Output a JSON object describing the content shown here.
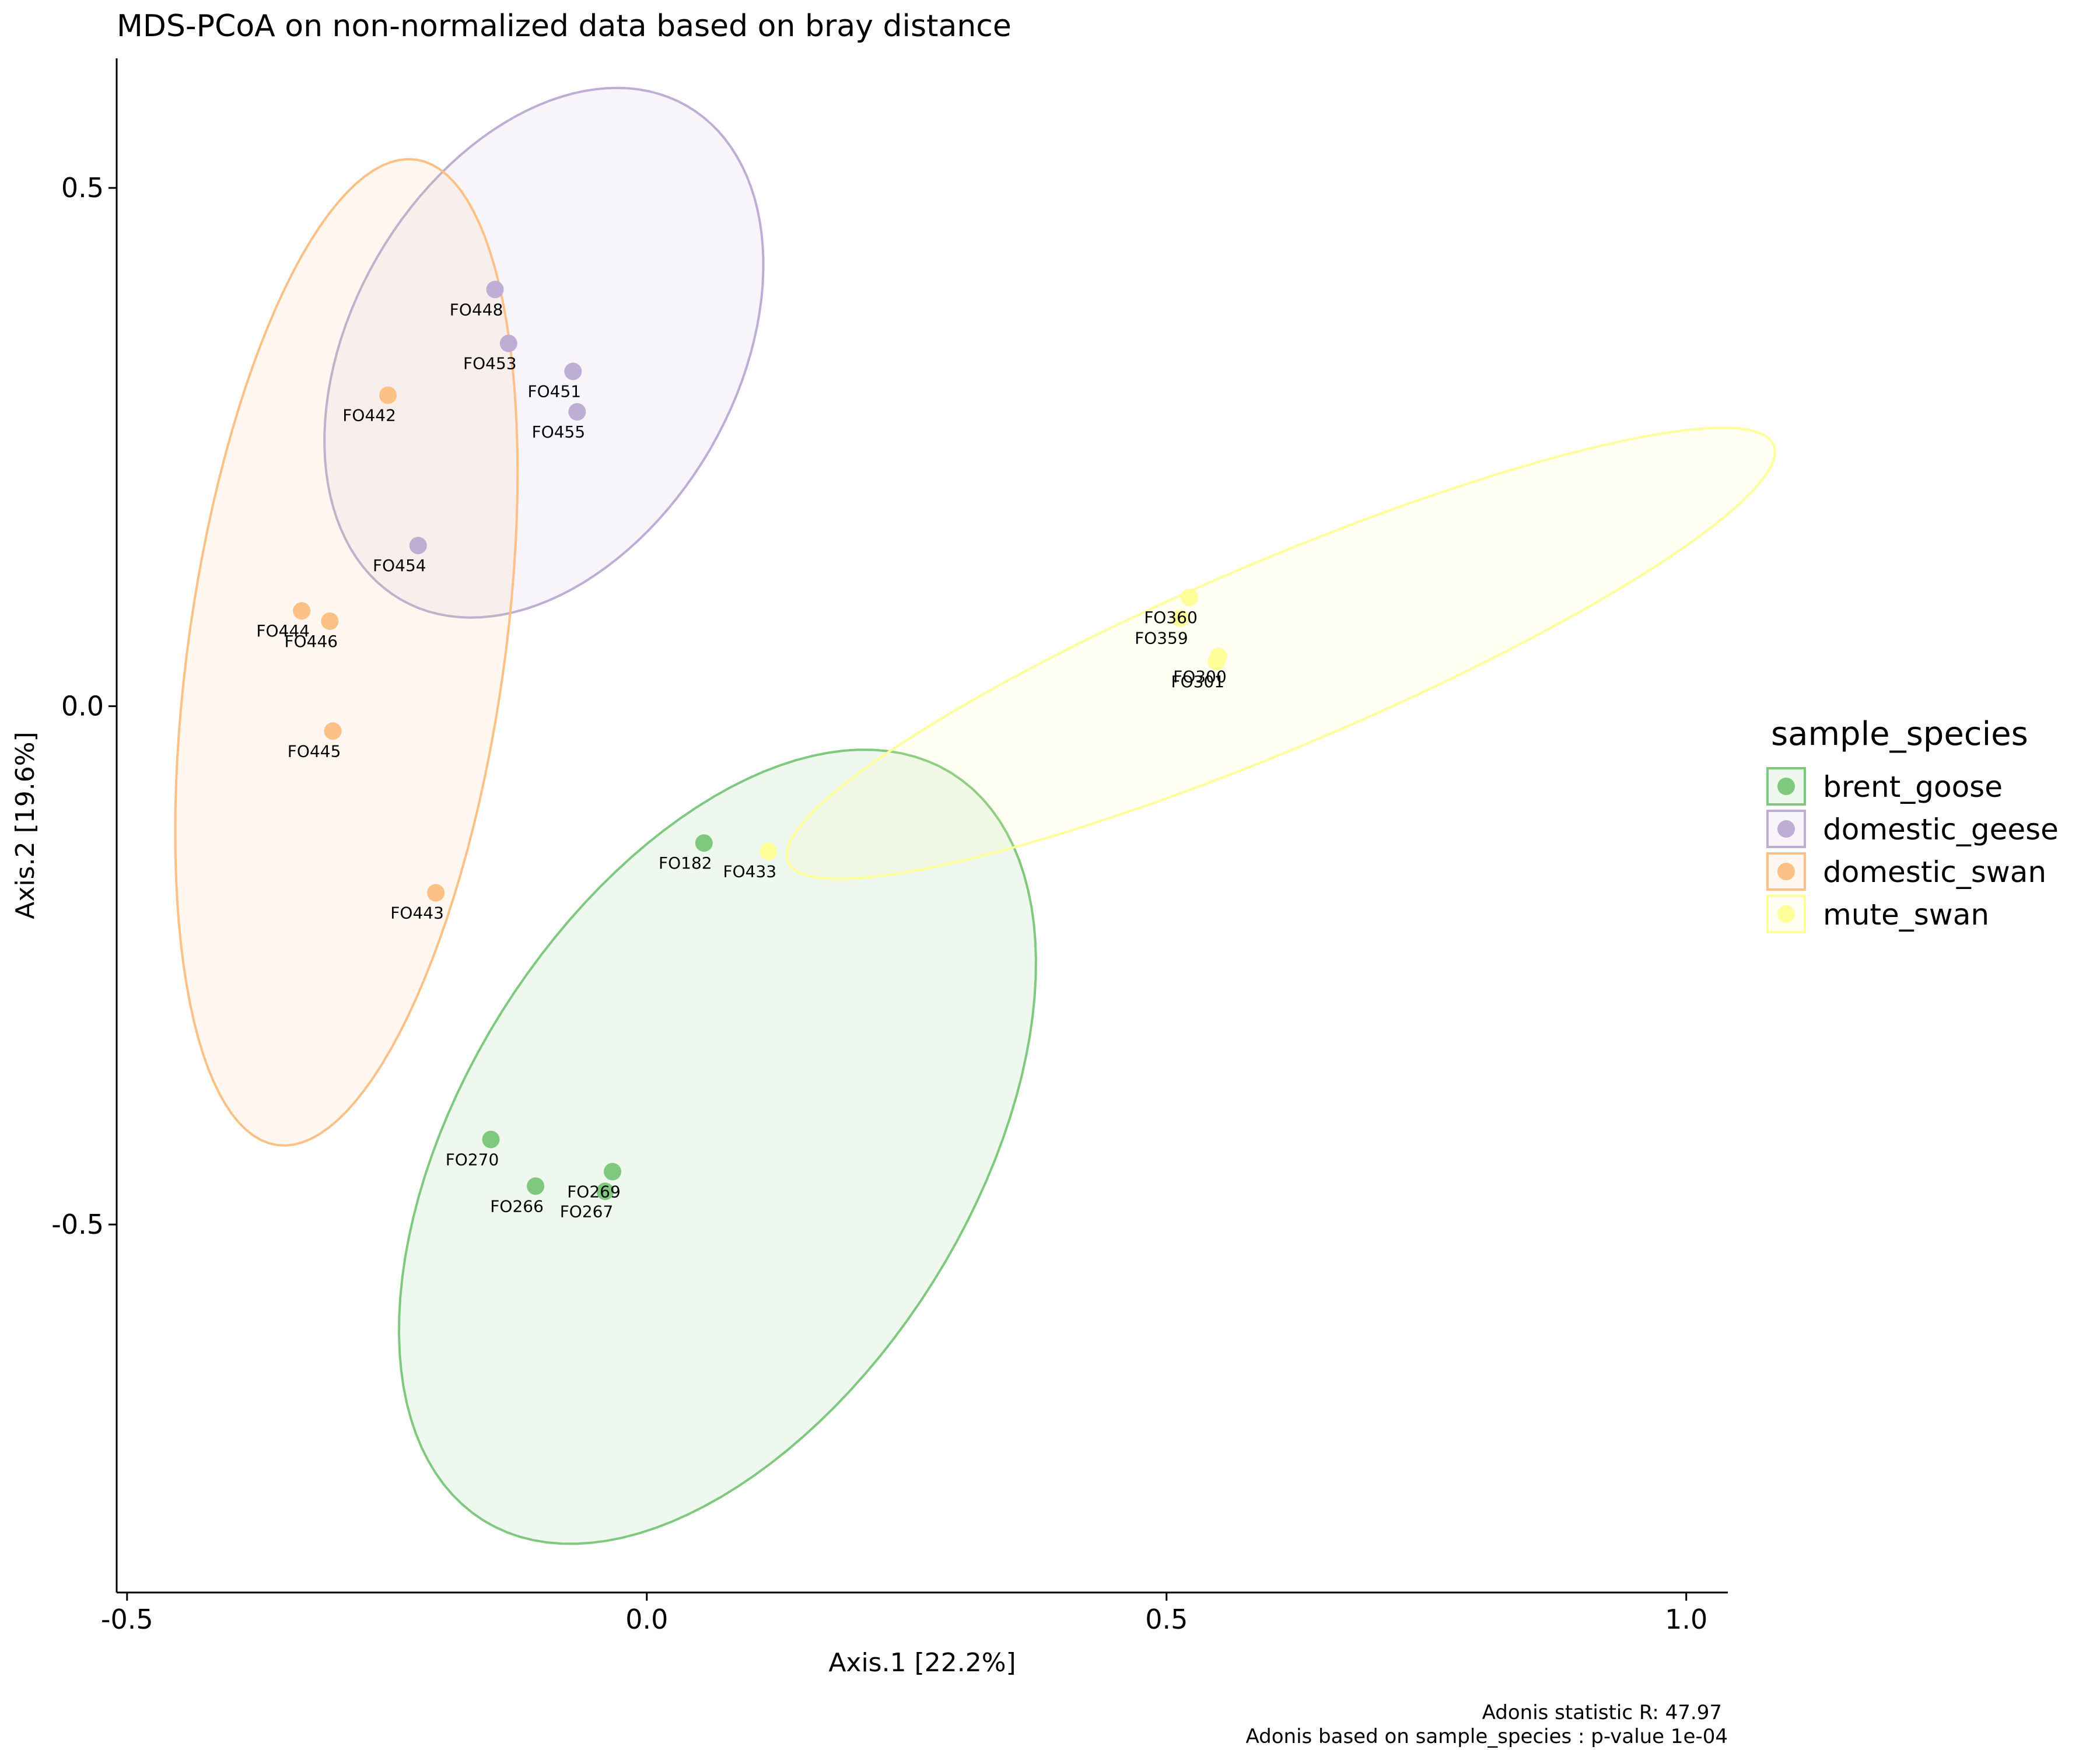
{
  "chart_data": {
    "type": "scatter",
    "title": "MDS-PCoA on non-normalized data based on bray distance",
    "xlabel": "Axis.1   [22.2%]",
    "ylabel": "Axis.2   [19.6%]",
    "xlim": [
      -0.51,
      1.04
    ],
    "ylim": [
      -0.855,
      0.625
    ],
    "xticks": [
      -0.5,
      0.0,
      0.5,
      1.0
    ],
    "xtick_labels": [
      "-0.5",
      "0.0",
      "0.5",
      "1.0"
    ],
    "yticks": [
      -0.5,
      0.0,
      0.5
    ],
    "ytick_labels": [
      "-0.5",
      "0.0",
      "0.5"
    ],
    "grid": false,
    "legend": {
      "title": "sample_species",
      "position": "right"
    },
    "caption": [
      "Adonis statistic R: 47.97",
      "Adonis based on  sample_species : p-value 1e-04"
    ],
    "series": [
      {
        "name": "brent_goose",
        "color": "#7fc97f",
        "points": [
          {
            "label": "FO182",
            "x": 0.055,
            "y": -0.132
          },
          {
            "label": "FO270",
            "x": -0.15,
            "y": -0.418
          },
          {
            "label": "FO266",
            "x": -0.107,
            "y": -0.463
          },
          {
            "label": "FO269",
            "x": -0.033,
            "y": -0.449
          },
          {
            "label": "FO267",
            "x": -0.04,
            "y": -0.468
          }
        ],
        "ellipse": {
          "cx": 0.068,
          "cy": -0.425,
          "rx": 0.425,
          "ry": 0.245,
          "angle": 58
        }
      },
      {
        "name": "domestic_geese",
        "color": "#beaed4",
        "points": [
          {
            "label": "FO448",
            "x": -0.146,
            "y": 0.402
          },
          {
            "label": "FO453",
            "x": -0.133,
            "y": 0.35
          },
          {
            "label": "FO451",
            "x": -0.071,
            "y": 0.323
          },
          {
            "label": "FO455",
            "x": -0.067,
            "y": 0.284
          },
          {
            "label": "FO454",
            "x": -0.22,
            "y": 0.155
          }
        ],
        "ellipse": {
          "cx": -0.099,
          "cy": 0.341,
          "rx": 0.275,
          "ry": 0.185,
          "angle": 60
        }
      },
      {
        "name": "domestic_swan",
        "color": "#fdc086",
        "points": [
          {
            "label": "FO442",
            "x": -0.249,
            "y": 0.3
          },
          {
            "label": "FO444",
            "x": -0.332,
            "y": 0.092
          },
          {
            "label": "FO446",
            "x": -0.305,
            "y": 0.082
          },
          {
            "label": "FO445",
            "x": -0.302,
            "y": -0.024
          },
          {
            "label": "FO443",
            "x": -0.203,
            "y": -0.18
          }
        ],
        "ellipse": {
          "cx": -0.289,
          "cy": 0.052,
          "rx": 0.48,
          "ry": 0.152,
          "angle": 82
        }
      },
      {
        "name": "mute_swan",
        "color": "#ffff99",
        "points": [
          {
            "label": "FO433",
            "x": 0.117,
            "y": -0.14
          },
          {
            "label": "FO360",
            "x": 0.522,
            "y": 0.105
          },
          {
            "label": "FO359",
            "x": 0.513,
            "y": 0.085
          },
          {
            "label": "FO300",
            "x": 0.55,
            "y": 0.048
          },
          {
            "label": "FO301",
            "x": 0.548,
            "y": 0.043
          }
        ],
        "ellipse": {
          "cx": 0.61,
          "cy": 0.051,
          "rx": 0.515,
          "ry": 0.09,
          "angle": 23
        }
      }
    ]
  }
}
